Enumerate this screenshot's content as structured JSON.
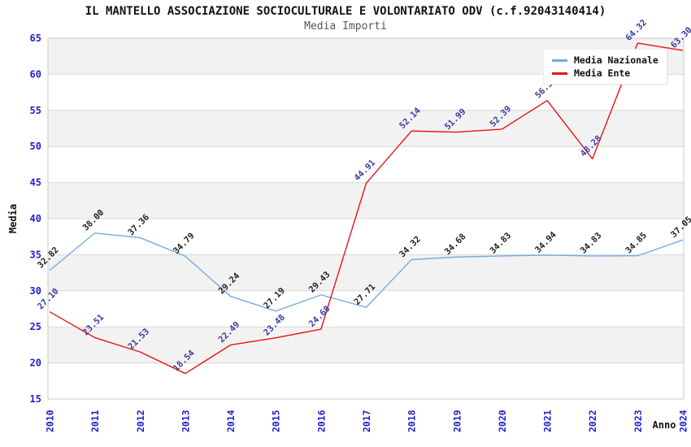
{
  "chart": {
    "title": "IL MANTELLO ASSOCIAZIONE SOCIOCULTURALE E VOLONTARIATO ODV (c.f.92043140414)",
    "subtitle": "Media Importi"
  },
  "chart_data": {
    "type": "line",
    "x": [
      2010,
      2011,
      2012,
      2013,
      2014,
      2015,
      2016,
      2017,
      2018,
      2019,
      2020,
      2021,
      2022,
      2023,
      2024
    ],
    "series": [
      {
        "name": "Media Nazionale",
        "color": "#74abe2",
        "label_color": "#222222",
        "values": [
          32.82,
          38.0,
          37.36,
          34.79,
          29.24,
          27.19,
          29.43,
          27.71,
          34.32,
          34.68,
          34.83,
          34.94,
          34.83,
          34.85,
          37.05
        ]
      },
      {
        "name": "Media Ente",
        "color": "#e81414",
        "label_color": "#3b3b9e",
        "values": [
          27.1,
          23.51,
          21.53,
          18.54,
          22.49,
          23.48,
          24.68,
          44.91,
          52.14,
          51.99,
          52.39,
          56.36,
          48.28,
          64.32,
          63.3
        ]
      }
    ],
    "xlabel": "Anno",
    "ylabel": "Media",
    "ylim": [
      15,
      65
    ],
    "ytick_step": 5,
    "yticks": [
      15,
      20,
      25,
      30,
      35,
      40,
      45,
      50,
      55,
      60,
      65
    ],
    "value_label_decimals": 2,
    "tick_color": "#2121cd",
    "grid_color": "#d9d9d9",
    "band_color": "#f2f2f2",
    "plot_border_color": "#c9c9c9",
    "grid": "horizontal gridlines with alternating shaded bands",
    "legend_position": "top-right",
    "x_tick_rotation": -90,
    "value_label_rotation": -45
  }
}
